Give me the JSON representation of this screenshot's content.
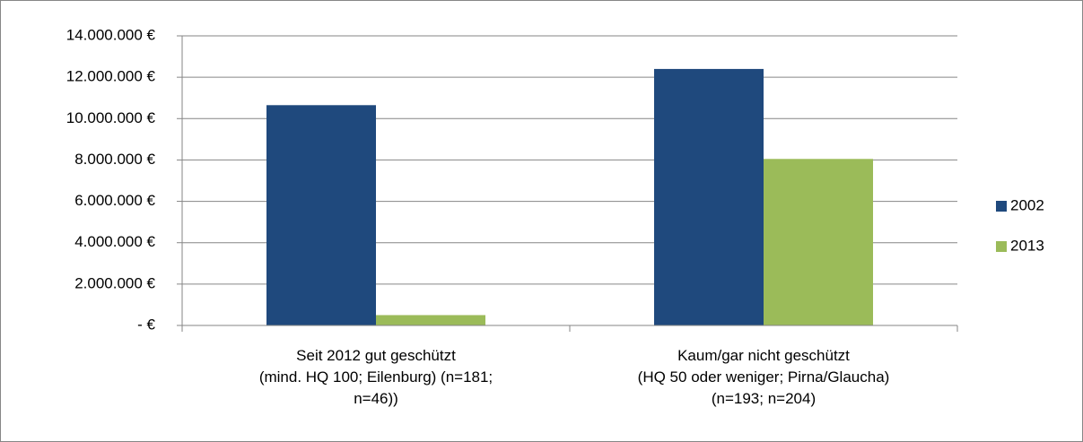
{
  "chart_data": {
    "type": "bar",
    "categories": [
      "Seit 2012 gut geschützt\n(mind. HQ 100; Eilenburg) (n=181;\nn=46))",
      "Kaum/gar nicht geschützt\n(HQ 50 oder weniger; Pirna/Glaucha)\n(n=193; n=204)"
    ],
    "series": [
      {
        "name": "2002",
        "color": "#1f497d",
        "values": [
          10650000,
          12400000
        ]
      },
      {
        "name": "2013",
        "color": "#9bbb59",
        "values": [
          500000,
          8050000
        ]
      }
    ],
    "ylim": [
      0,
      14000000
    ],
    "yticks": [
      {
        "value": 0,
        "label": "-   €"
      },
      {
        "value": 2000000,
        "label": "2.000.000 €"
      },
      {
        "value": 4000000,
        "label": "4.000.000 €"
      },
      {
        "value": 6000000,
        "label": "6.000.000 €"
      },
      {
        "value": 8000000,
        "label": "8.000.000 €"
      },
      {
        "value": 10000000,
        "label": "10.000.000 €"
      },
      {
        "value": 12000000,
        "label": "12.000.000 €"
      },
      {
        "value": 14000000,
        "label": "14.000.000 €"
      }
    ],
    "grid": true,
    "legend": "right"
  }
}
